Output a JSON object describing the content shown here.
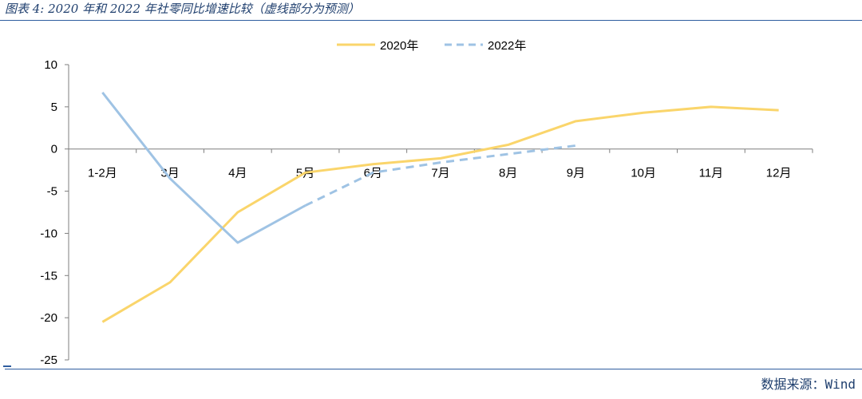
{
  "figure": {
    "title": "图表 4: 2020 年和 2022 年社零同比增速比较（虚线部分为预测）",
    "source": "数据来源：Wind"
  },
  "colors": {
    "series_2020": "#fad56b",
    "series_2022": "#9fc3e4",
    "axis": "#7f7f7f",
    "rule": "#2e5d9f"
  },
  "chart_data": {
    "type": "line",
    "categories": [
      "1-2月",
      "3月",
      "4月",
      "5月",
      "6月",
      "7月",
      "8月",
      "9月",
      "10月",
      "11月",
      "12月"
    ],
    "ylim": [
      -25,
      10
    ],
    "yticks": [
      10,
      5,
      0,
      -5,
      -10,
      -15,
      -20,
      -25
    ],
    "grid": false,
    "legend": "top-center",
    "series": [
      {
        "name": "2020年",
        "style": "solid",
        "values": [
          -20.5,
          -15.8,
          -7.5,
          -2.8,
          -1.8,
          -1.1,
          0.5,
          3.3,
          4.3,
          5.0,
          4.6
        ]
      },
      {
        "name": "2022年",
        "style": "solid-then-dashed",
        "values": [
          6.7,
          -3.5,
          -11.1,
          -6.7,
          -2.8,
          -1.6,
          -0.6,
          0.4,
          null,
          null,
          null
        ],
        "forecast_from_index": 3
      }
    ]
  }
}
